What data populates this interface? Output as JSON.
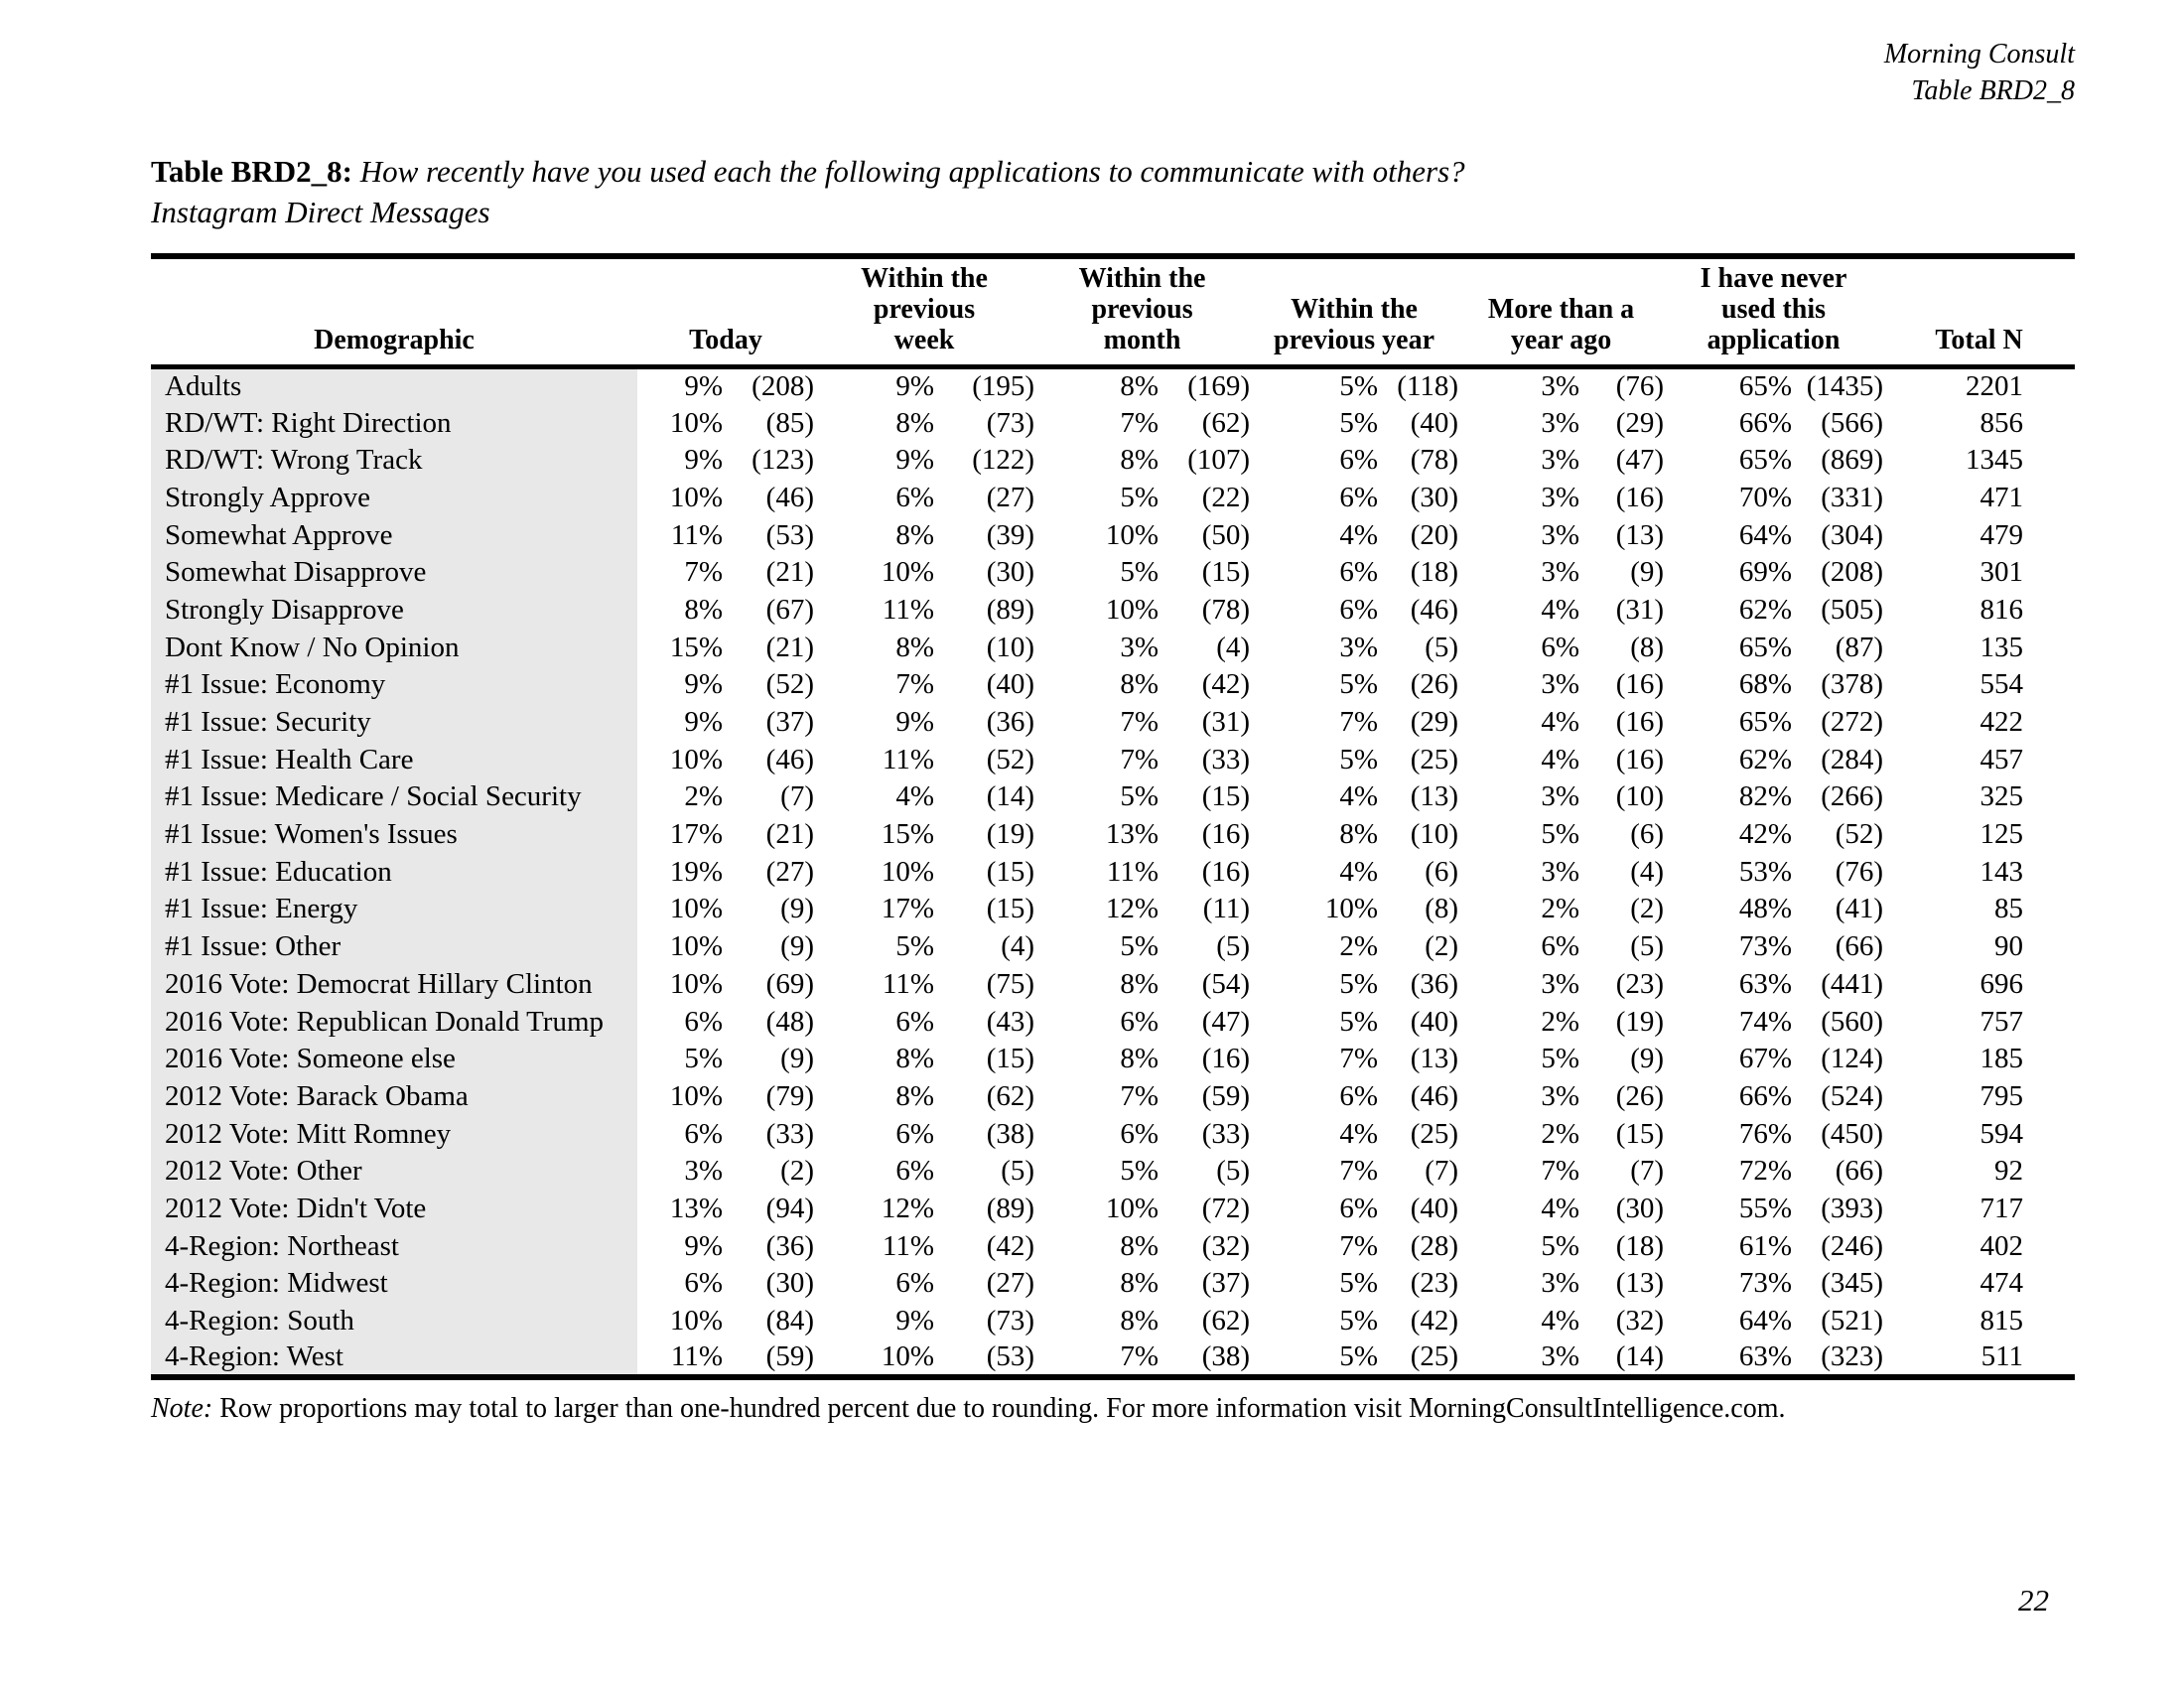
{
  "corner": {
    "line1": "Morning Consult",
    "line2": "Table BRD2_8"
  },
  "title": {
    "label": "Table BRD2_8:",
    "question": "How recently have you used each the following applications to communicate with others?",
    "subtitle": "Instagram Direct Messages"
  },
  "table": {
    "columns": [
      "Demographic",
      "Today",
      "Within the\nprevious\nweek",
      "Within the\nprevious\nmonth",
      "Within the\nprevious year",
      "More than a\nyear ago",
      "I have never\nused this\napplication",
      "Total N"
    ],
    "rows": [
      {
        "label": "Adults",
        "values": [
          "9%",
          "(208)",
          "9%",
          "(195)",
          "8%",
          "(169)",
          "5%",
          "(118)",
          "3%",
          "(76)",
          "65%",
          "(1435)",
          "2201"
        ]
      },
      {
        "label": "RD/WT: Right Direction",
        "values": [
          "10%",
          "(85)",
          "8%",
          "(73)",
          "7%",
          "(62)",
          "5%",
          "(40)",
          "3%",
          "(29)",
          "66%",
          "(566)",
          "856"
        ]
      },
      {
        "label": "RD/WT: Wrong Track",
        "values": [
          "9%",
          "(123)",
          "9%",
          "(122)",
          "8%",
          "(107)",
          "6%",
          "(78)",
          "3%",
          "(47)",
          "65%",
          "(869)",
          "1345"
        ]
      },
      {
        "label": "Strongly Approve",
        "values": [
          "10%",
          "(46)",
          "6%",
          "(27)",
          "5%",
          "(22)",
          "6%",
          "(30)",
          "3%",
          "(16)",
          "70%",
          "(331)",
          "471"
        ]
      },
      {
        "label": "Somewhat Approve",
        "values": [
          "11%",
          "(53)",
          "8%",
          "(39)",
          "10%",
          "(50)",
          "4%",
          "(20)",
          "3%",
          "(13)",
          "64%",
          "(304)",
          "479"
        ]
      },
      {
        "label": "Somewhat Disapprove",
        "values": [
          "7%",
          "(21)",
          "10%",
          "(30)",
          "5%",
          "(15)",
          "6%",
          "(18)",
          "3%",
          "(9)",
          "69%",
          "(208)",
          "301"
        ]
      },
      {
        "label": "Strongly Disapprove",
        "values": [
          "8%",
          "(67)",
          "11%",
          "(89)",
          "10%",
          "(78)",
          "6%",
          "(46)",
          "4%",
          "(31)",
          "62%",
          "(505)",
          "816"
        ]
      },
      {
        "label": "Dont Know / No Opinion",
        "values": [
          "15%",
          "(21)",
          "8%",
          "(10)",
          "3%",
          "(4)",
          "3%",
          "(5)",
          "6%",
          "(8)",
          "65%",
          "(87)",
          "135"
        ]
      },
      {
        "label": "#1 Issue: Economy",
        "values": [
          "9%",
          "(52)",
          "7%",
          "(40)",
          "8%",
          "(42)",
          "5%",
          "(26)",
          "3%",
          "(16)",
          "68%",
          "(378)",
          "554"
        ]
      },
      {
        "label": "#1 Issue: Security",
        "values": [
          "9%",
          "(37)",
          "9%",
          "(36)",
          "7%",
          "(31)",
          "7%",
          "(29)",
          "4%",
          "(16)",
          "65%",
          "(272)",
          "422"
        ]
      },
      {
        "label": "#1 Issue: Health Care",
        "values": [
          "10%",
          "(46)",
          "11%",
          "(52)",
          "7%",
          "(33)",
          "5%",
          "(25)",
          "4%",
          "(16)",
          "62%",
          "(284)",
          "457"
        ]
      },
      {
        "label": "#1 Issue: Medicare / Social Security",
        "values": [
          "2%",
          "(7)",
          "4%",
          "(14)",
          "5%",
          "(15)",
          "4%",
          "(13)",
          "3%",
          "(10)",
          "82%",
          "(266)",
          "325"
        ]
      },
      {
        "label": "#1 Issue: Women's Issues",
        "values": [
          "17%",
          "(21)",
          "15%",
          "(19)",
          "13%",
          "(16)",
          "8%",
          "(10)",
          "5%",
          "(6)",
          "42%",
          "(52)",
          "125"
        ]
      },
      {
        "label": "#1 Issue: Education",
        "values": [
          "19%",
          "(27)",
          "10%",
          "(15)",
          "11%",
          "(16)",
          "4%",
          "(6)",
          "3%",
          "(4)",
          "53%",
          "(76)",
          "143"
        ]
      },
      {
        "label": "#1 Issue: Energy",
        "values": [
          "10%",
          "(9)",
          "17%",
          "(15)",
          "12%",
          "(11)",
          "10%",
          "(8)",
          "2%",
          "(2)",
          "48%",
          "(41)",
          "85"
        ]
      },
      {
        "label": "#1 Issue: Other",
        "values": [
          "10%",
          "(9)",
          "5%",
          "(4)",
          "5%",
          "(5)",
          "2%",
          "(2)",
          "6%",
          "(5)",
          "73%",
          "(66)",
          "90"
        ]
      },
      {
        "label": "2016 Vote: Democrat Hillary Clinton",
        "values": [
          "10%",
          "(69)",
          "11%",
          "(75)",
          "8%",
          "(54)",
          "5%",
          "(36)",
          "3%",
          "(23)",
          "63%",
          "(441)",
          "696"
        ]
      },
      {
        "label": "2016 Vote: Republican Donald Trump",
        "values": [
          "6%",
          "(48)",
          "6%",
          "(43)",
          "6%",
          "(47)",
          "5%",
          "(40)",
          "2%",
          "(19)",
          "74%",
          "(560)",
          "757"
        ]
      },
      {
        "label": "2016 Vote: Someone else",
        "values": [
          "5%",
          "(9)",
          "8%",
          "(15)",
          "8%",
          "(16)",
          "7%",
          "(13)",
          "5%",
          "(9)",
          "67%",
          "(124)",
          "185"
        ]
      },
      {
        "label": "2012 Vote: Barack Obama",
        "values": [
          "10%",
          "(79)",
          "8%",
          "(62)",
          "7%",
          "(59)",
          "6%",
          "(46)",
          "3%",
          "(26)",
          "66%",
          "(524)",
          "795"
        ]
      },
      {
        "label": "2012 Vote: Mitt Romney",
        "values": [
          "6%",
          "(33)",
          "6%",
          "(38)",
          "6%",
          "(33)",
          "4%",
          "(25)",
          "2%",
          "(15)",
          "76%",
          "(450)",
          "594"
        ]
      },
      {
        "label": "2012 Vote: Other",
        "values": [
          "3%",
          "(2)",
          "6%",
          "(5)",
          "5%",
          "(5)",
          "7%",
          "(7)",
          "7%",
          "(7)",
          "72%",
          "(66)",
          "92"
        ]
      },
      {
        "label": "2012 Vote: Didn't Vote",
        "values": [
          "13%",
          "(94)",
          "12%",
          "(89)",
          "10%",
          "(72)",
          "6%",
          "(40)",
          "4%",
          "(30)",
          "55%",
          "(393)",
          "717"
        ]
      },
      {
        "label": "4-Region: Northeast",
        "values": [
          "9%",
          "(36)",
          "11%",
          "(42)",
          "8%",
          "(32)",
          "7%",
          "(28)",
          "5%",
          "(18)",
          "61%",
          "(246)",
          "402"
        ]
      },
      {
        "label": "4-Region: Midwest",
        "values": [
          "6%",
          "(30)",
          "6%",
          "(27)",
          "8%",
          "(37)",
          "5%",
          "(23)",
          "3%",
          "(13)",
          "73%",
          "(345)",
          "474"
        ]
      },
      {
        "label": "4-Region: South",
        "values": [
          "10%",
          "(84)",
          "9%",
          "(73)",
          "8%",
          "(62)",
          "5%",
          "(42)",
          "4%",
          "(32)",
          "64%",
          "(521)",
          "815"
        ]
      },
      {
        "label": "4-Region: West",
        "values": [
          "11%",
          "(59)",
          "10%",
          "(53)",
          "7%",
          "(38)",
          "5%",
          "(25)",
          "3%",
          "(14)",
          "63%",
          "(323)",
          "511"
        ]
      }
    ]
  },
  "note": {
    "label": "Note:",
    "text": "Row proportions may total to larger than one-hundred percent due to rounding. For more information visit MorningConsultIntelligence.com."
  },
  "page_number": "22"
}
